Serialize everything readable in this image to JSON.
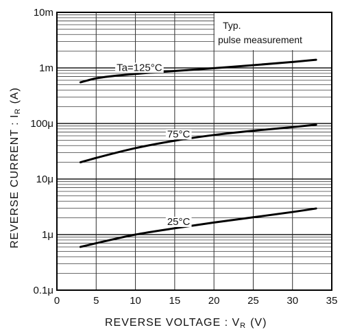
{
  "chart_data": {
    "type": "line",
    "xlabel": "REVERSE  VOLTAGE : V",
    "xlabel_sub": "R",
    "xlabel_unit": "(V)",
    "ylabel": "REVERSE  CURRENT : I",
    "ylabel_sub": "R",
    "ylabel_unit": "(A)",
    "xlim": [
      0,
      35
    ],
    "ylim": [
      1e-07,
      0.01
    ],
    "yscale": "log",
    "grid": true,
    "x_ticks": [
      0,
      5,
      10,
      15,
      20,
      25,
      30,
      35
    ],
    "x_tick_labels": [
      "0",
      "5",
      "10",
      "15",
      "20",
      "25",
      "30",
      "35"
    ],
    "y_ticks": [
      1e-07,
      1e-06,
      1e-05,
      0.0001,
      0.001,
      0.01
    ],
    "y_tick_labels": [
      "0.1μ",
      "1μ",
      "10μ",
      "100μ",
      "1m",
      "10m"
    ],
    "annotations": [
      "Typ.",
      "pulse measurement"
    ],
    "series": [
      {
        "name": "Ta=125°C",
        "x": [
          3,
          5,
          10,
          15,
          20,
          25,
          30,
          33
        ],
        "y": [
          0.00055,
          0.00065,
          0.00078,
          0.00088,
          0.00099,
          0.00112,
          0.00128,
          0.0014
        ]
      },
      {
        "name": "75°C",
        "x": [
          3,
          5,
          10,
          15,
          20,
          25,
          30,
          33
        ],
        "y": [
          2e-05,
          2.4e-05,
          3.6e-05,
          4.9e-05,
          6.2e-05,
          7.4e-05,
          8.6e-05,
          9.5e-05
        ]
      },
      {
        "name": "25°C",
        "x": [
          3,
          5,
          10,
          15,
          20,
          25,
          30,
          33
        ],
        "y": [
          6e-07,
          7e-07,
          1e-06,
          1.3e-06,
          1.65e-06,
          2.05e-06,
          2.55e-06,
          2.95e-06
        ]
      }
    ]
  }
}
